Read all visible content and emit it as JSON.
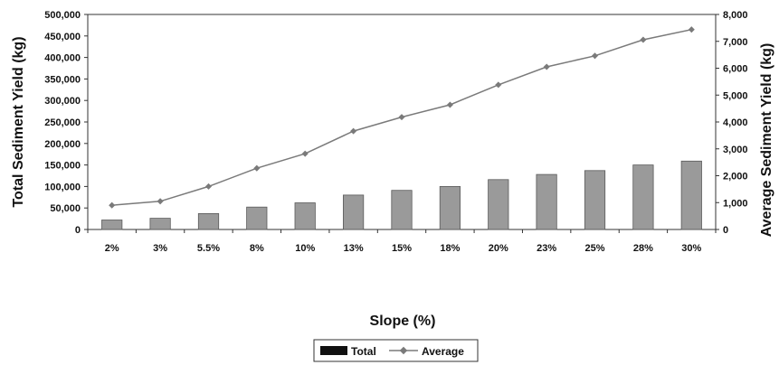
{
  "chart_data": {
    "type": "bar",
    "categories": [
      "2%",
      "3%",
      "5.5%",
      "8%",
      "10%",
      "13%",
      "15%",
      "18%",
      "20%",
      "23%",
      "25%",
      "28%",
      "30%"
    ],
    "series": [
      {
        "name": "Total",
        "type": "bar",
        "axis": "left",
        "values": [
          22000,
          26000,
          37000,
          52000,
          62000,
          80000,
          91000,
          100000,
          116000,
          128000,
          137000,
          150000,
          159000
        ]
      },
      {
        "name": "Average",
        "type": "line",
        "axis": "right",
        "values": [
          900,
          1050,
          1600,
          2280,
          2820,
          3660,
          4180,
          4640,
          5380,
          6050,
          6460,
          7060,
          7440
        ]
      }
    ],
    "xlabel": "Slope (%)",
    "ylabel": "Total Sediment Yield (kg)",
    "y2label": "Average Sediment Yield (kg)",
    "ylim": [
      0,
      500000
    ],
    "y2lim": [
      0,
      8000
    ],
    "yticks": [
      "0",
      "50,000",
      "100,000",
      "150,000",
      "200,000",
      "250,000",
      "300,000",
      "350,000",
      "400,000",
      "450,000",
      "500,000"
    ],
    "y2ticks": [
      "0",
      "1,000",
      "2,000",
      "3,000",
      "4,000",
      "5,000",
      "6,000",
      "7,000",
      "8,000"
    ],
    "grid": false,
    "legend_position": "bottom-center",
    "colors": {
      "bar": "#9a9a9a",
      "bar_stroke": "#5a5a5a",
      "line": "#7a7a7a",
      "axis": "#333333",
      "legend_bar": "#111111"
    }
  }
}
